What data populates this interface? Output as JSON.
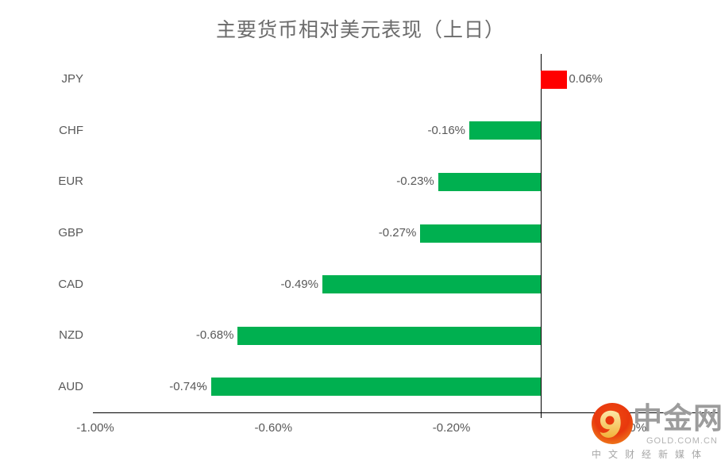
{
  "title": "主要货币相对美元表现（上日）",
  "chart_data": {
    "type": "bar",
    "orientation": "horizontal",
    "title": "主要货币相对美元表现（上日）",
    "categories": [
      "JPY",
      "CHF",
      "EUR",
      "GBP",
      "CAD",
      "NZD",
      "AUD"
    ],
    "values": [
      0.06,
      -0.16,
      -0.23,
      -0.27,
      -0.49,
      -0.68,
      -0.74
    ],
    "data_labels": [
      "0.06%",
      "-0.16%",
      "-0.23%",
      "-0.27%",
      "-0.49%",
      "-0.68%",
      "-0.74%"
    ],
    "xlabel": "",
    "ylabel": "",
    "xlim": [
      -1.0,
      0.4
    ],
    "x_ticks": [
      -1.0,
      -0.6,
      -0.2,
      0.2
    ],
    "x_tick_labels": [
      "-1.00%",
      "-0.60%",
      "-0.20%",
      "0.20%"
    ],
    "grid": false,
    "legend": false,
    "positive_color": "#FF0000",
    "negative_color": "#00B050",
    "text_color": "#595959"
  },
  "watermark": {
    "name": "中金网",
    "domain": "GOLD.COM.CN",
    "tagline": "中文财经新媒体",
    "icon": "gold-swirl-badge",
    "badge_color": "#E8380D",
    "swirl_color": "#F5C143"
  }
}
